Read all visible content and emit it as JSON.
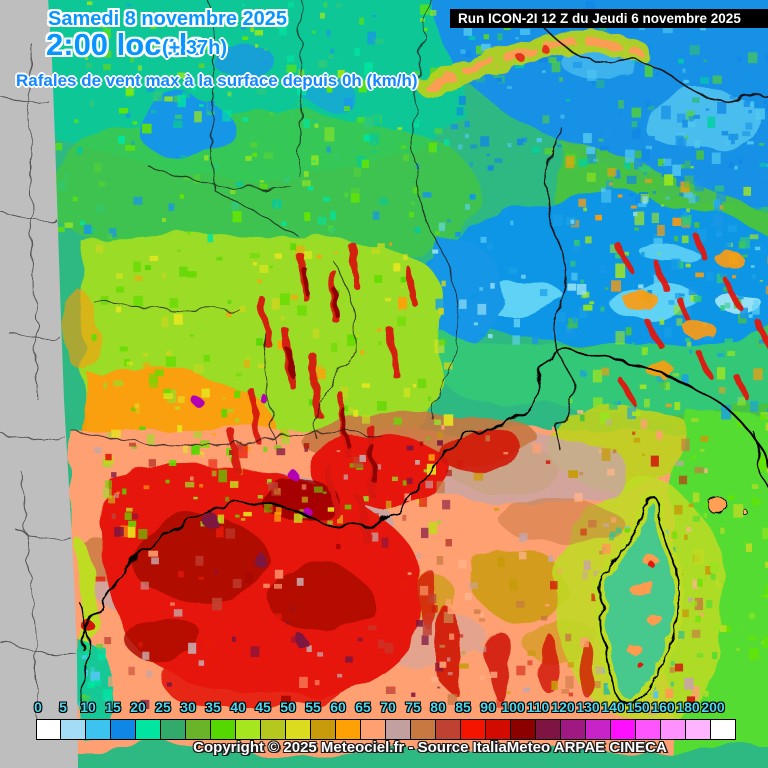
{
  "header": {
    "date": "Samedi 8 novembre 2025",
    "local_time": "2:00 locale",
    "forecast_offset": "(+ 37h)",
    "parameter": "Rafales de vent max à la surface depuis 0h (km/h)",
    "run_info": "Run ICON-2I 12 Z du Jeudi 6 novembre 2025"
  },
  "footer": {
    "copyright": "Copyright © 2025 Meteociel.fr - Source ItaliaMeteo ARPAE CINECA"
  },
  "legend": {
    "stops": [
      {
        "value": "0",
        "color": "#ffffff"
      },
      {
        "value": "5",
        "color": "#a5dcf5"
      },
      {
        "value": "10",
        "color": "#3cc3f0"
      },
      {
        "value": "15",
        "color": "#0f87e6"
      },
      {
        "value": "20",
        "color": "#00e6a0"
      },
      {
        "value": "25",
        "color": "#32aa69"
      },
      {
        "value": "30",
        "color": "#69b428"
      },
      {
        "value": "35",
        "color": "#55d700"
      },
      {
        "value": "40",
        "color": "#a5e61e"
      },
      {
        "value": "45",
        "color": "#b4c81e"
      },
      {
        "value": "50",
        "color": "#dcdc1e"
      },
      {
        "value": "55",
        "color": "#c89b0a"
      },
      {
        "value": "60",
        "color": "#ffa005"
      },
      {
        "value": "65",
        "color": "#ffa073"
      },
      {
        "value": "70",
        "color": "#c3a0a0"
      },
      {
        "value": "75",
        "color": "#c87841"
      },
      {
        "value": "80",
        "color": "#be4132"
      },
      {
        "value": "85",
        "color": "#f51400"
      },
      {
        "value": "90",
        "color": "#d20a00"
      },
      {
        "value": "100",
        "color": "#8c0000"
      },
      {
        "value": "110",
        "color": "#7d1441"
      },
      {
        "value": "120",
        "color": "#a01982"
      },
      {
        "value": "130",
        "color": "#c823c8"
      },
      {
        "value": "140",
        "color": "#ff0fff"
      },
      {
        "value": "150",
        "color": "#ff55ff"
      },
      {
        "value": "160",
        "color": "#ff91ff"
      },
      {
        "value": "180",
        "color": "#ffb4ff"
      },
      {
        "value": "200",
        "color": "#ffffff"
      }
    ]
  },
  "colors": {
    "title_text": "#0995ff",
    "title_outline": "#ffffff",
    "legend_label_text": "#4fd7f0",
    "run_bar_background": "#000000",
    "run_bar_text": "#ffffff",
    "outside_domain_gray": "#bebebe"
  }
}
